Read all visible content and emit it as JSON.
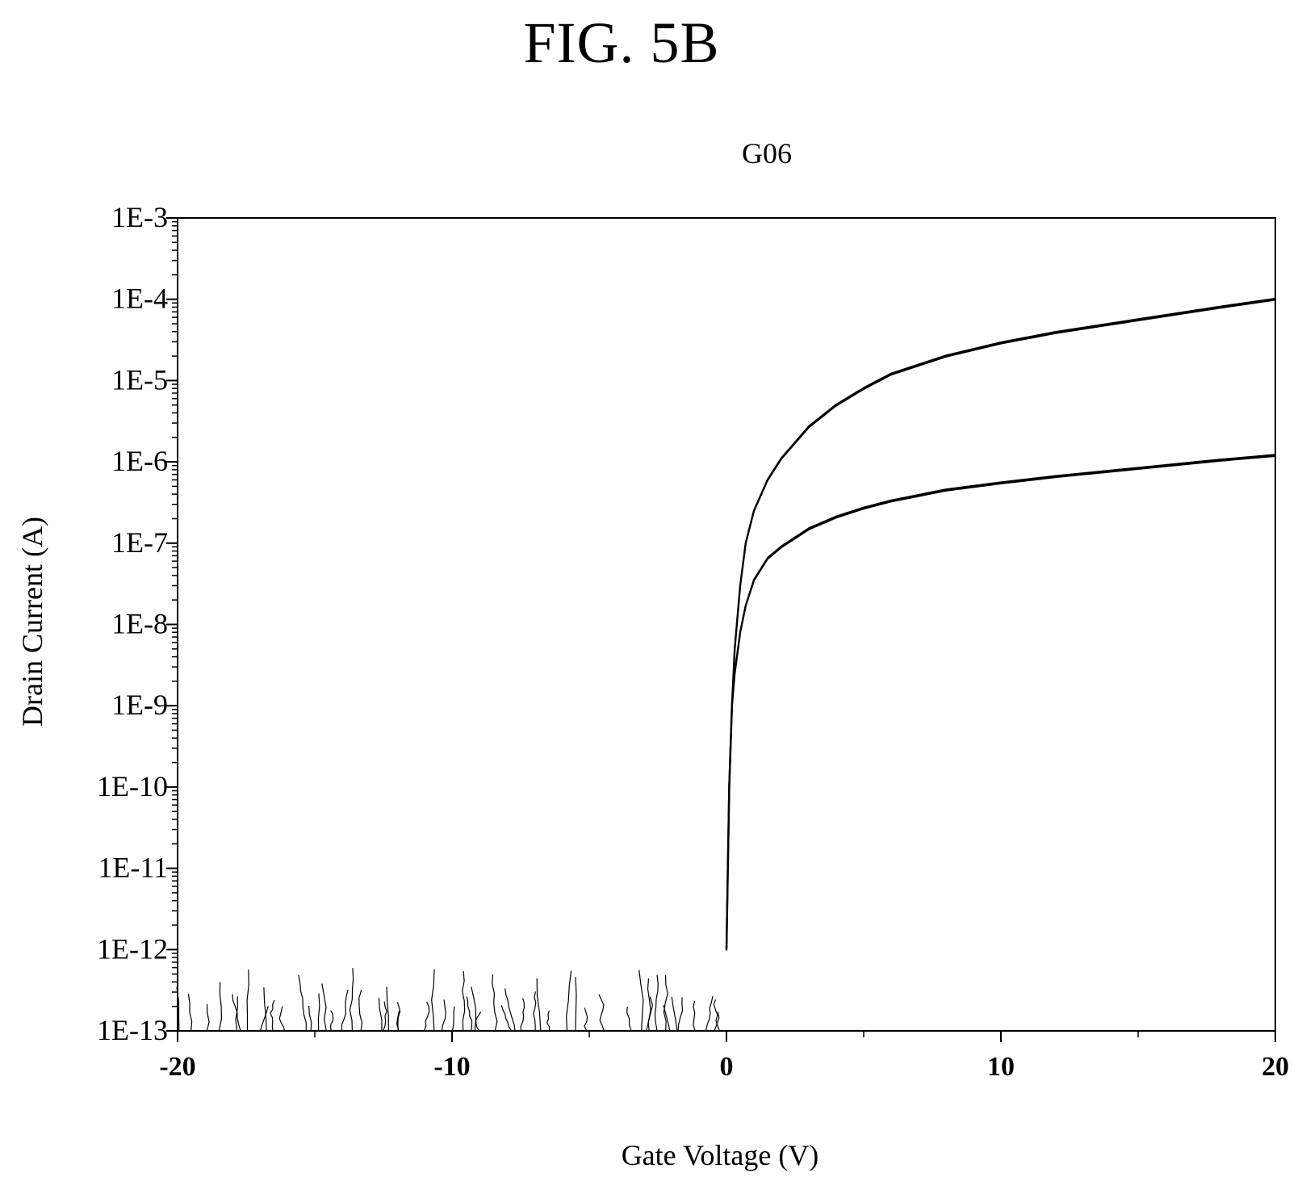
{
  "figure_label": "FIG. 5B",
  "chart_data": {
    "type": "line",
    "title": "G06",
    "xlabel": "Gate Voltage (V)",
    "ylabel": "Drain Current (A)",
    "xlim": [
      -20,
      20
    ],
    "ylim": [
      1e-13,
      0.001
    ],
    "yscale": "log",
    "grid": false,
    "x_tick_labels": [
      "-20",
      "-10",
      "0",
      "10",
      "20"
    ],
    "x_tick_values": [
      -20,
      -10,
      0,
      10,
      20
    ],
    "y_tick_labels": [
      "1E-3",
      "1E-4",
      "1E-5",
      "1E-6",
      "1E-7",
      "1E-8",
      "1E-9",
      "1E-10",
      "1E-11",
      "1E-12",
      "1E-13"
    ],
    "y_tick_values": [
      0.001,
      0.0001,
      1e-05,
      1e-06,
      1e-07,
      1e-08,
      1e-09,
      1e-10,
      1e-11,
      1e-12,
      1e-13
    ],
    "colors": {
      "line": "#000000",
      "axis": "#000000"
    },
    "series": [
      {
        "x": [
          0.0,
          0.1,
          0.2,
          0.3,
          0.5,
          0.7,
          1.0,
          1.5,
          2.0,
          3.0,
          4.0,
          5.0,
          6.0,
          8.0,
          10.0,
          12.0,
          15.0,
          18.0,
          20.0
        ],
        "y": [
          1e-12,
          1e-10,
          1e-09,
          5e-09,
          3e-08,
          1e-07,
          2.5e-07,
          6e-07,
          1.1e-06,
          2.7e-06,
          5e-06,
          8e-06,
          1.2e-05,
          2e-05,
          2.9e-05,
          3.9e-05,
          5.6e-05,
          8e-05,
          0.0001
        ]
      },
      {
        "x": [
          0.0,
          0.1,
          0.2,
          0.3,
          0.5,
          0.7,
          1.0,
          1.5,
          2.0,
          3.0,
          4.0,
          5.0,
          6.0,
          8.0,
          10.0,
          12.0,
          15.0,
          18.0,
          20.0
        ],
        "y": [
          1e-12,
          1e-10,
          1e-09,
          2.5e-09,
          8e-09,
          1.7e-08,
          3.5e-08,
          6.5e-08,
          9e-08,
          1.5e-07,
          2.1e-07,
          2.7e-07,
          3.3e-07,
          4.5e-07,
          5.5e-07,
          6.6e-07,
          8.3e-07,
          1.05e-06,
          1.2e-06
        ]
      }
    ],
    "noise_floor": {
      "x_range": [
        -20,
        -0.3
      ],
      "y_range": [
        1e-13,
        6e-13
      ]
    }
  }
}
